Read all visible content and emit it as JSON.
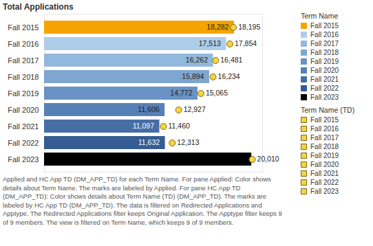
{
  "chart_data": {
    "type": "bar",
    "orientation": "horizontal",
    "title": "Total Applications",
    "caption": "Applied and HC App TD (DM_APP_TD) for each Term Name. For pane Applied: Color shows details about Term Name. The marks are labeled by Applied. For pane HC App TD (DM_APP_TD): Color shows details about Term Name (TD) (DM_APP_TD). The marks are labeled by HC App TD (DM_APP_TD). The data is filtered on Redirected Applications and Apptype. The Redirected Applications filter keeps Original Application. The Apptype filter keeps 9 of 9 members. The view is filtered on Term Name, which keeps 9 of 9 members.",
    "categories": [
      "Fall 2015",
      "Fall 2016",
      "Fall 2017",
      "Fall 2018",
      "Fall 2019",
      "Fall 2020",
      "Fall 2021",
      "Fall 2022",
      "Fall 2023"
    ],
    "series": [
      {
        "name": "Applied",
        "type": "bar",
        "legend_title": "Term Name",
        "colors": [
          "#f5a300",
          "#aecde9",
          "#93b8dd",
          "#7ea6d1",
          "#6a92c4",
          "#5780b6",
          "#466ea5",
          "#365d92",
          "#000000"
        ],
        "values": [
          18282,
          17513,
          16262,
          15894,
          14772,
          11606,
          11097,
          11632,
          19950
        ],
        "value_labels": [
          "18,282",
          "17,513",
          "16,262",
          "15,894",
          "14,772",
          "11,606",
          "11,097",
          "11,632",
          null
        ]
      },
      {
        "name": "HC App TD (DM_APP_TD)",
        "type": "scatter",
        "marker": "circle",
        "legend_title": "Term Name (TD)",
        "color": "#f7d33c",
        "values": [
          18195,
          17854,
          16481,
          16234,
          15065,
          12927,
          11460,
          12313,
          20010
        ],
        "value_labels": [
          "18,195",
          "17,854",
          "16,481",
          "16,234",
          "15,065",
          "12,927",
          "11,460",
          "12,313",
          "20,010"
        ]
      }
    ],
    "xlim": [
      0,
      21000
    ],
    "data_labels": true,
    "tick_labels": "y",
    "legend": "right"
  }
}
